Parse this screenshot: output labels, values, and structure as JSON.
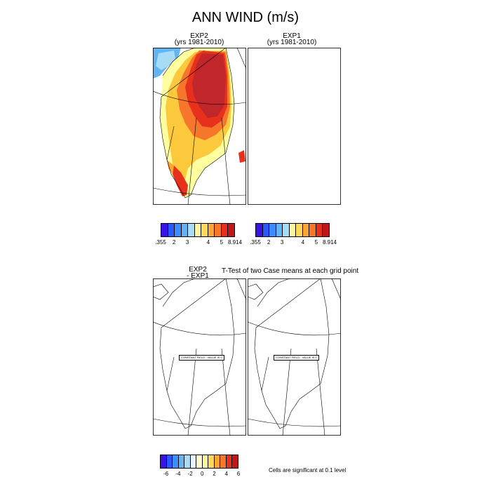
{
  "title": "ANN WIND (m/s)",
  "panels": {
    "exp2": {
      "title": "EXP2",
      "subtitle": "(yrs 1981-2010)"
    },
    "exp1": {
      "title": "EXP1",
      "subtitle": "(yrs 1981-2010)"
    },
    "diff": {
      "title_line1": "EXP2",
      "title_line2": "- EXP1"
    },
    "ttest": {
      "title": "T-Test of two Case means at each grid point"
    }
  },
  "colorbar_top": {
    "colors": [
      "#3a14e6",
      "#2a5aff",
      "#3f8cff",
      "#62b5f0",
      "#a6dcf5",
      "#fdf7a3",
      "#fdd85a",
      "#fba534",
      "#f6762b",
      "#e8311c",
      "#c01818"
    ],
    "labels": [
      ".355",
      "2",
      "3",
      "4",
      "5",
      "8.914"
    ]
  },
  "colorbar_bottom": {
    "colors": [
      "#3a14e6",
      "#2a5aff",
      "#3f8cff",
      "#62b5f0",
      "#a6dcf5",
      "#e8f6fb",
      "#fffbd0",
      "#fdf7a3",
      "#fdd85a",
      "#fba534",
      "#f6762b",
      "#e8311c",
      "#c01818"
    ],
    "labels": [
      "-6",
      "-4",
      "-2",
      "0",
      "2",
      "4",
      "6"
    ]
  },
  "constant_field_label": "CONSTANT FIELD - VALUE IS 0",
  "significance_note": "Cells are significant at 0.1 level",
  "map_colors": {
    "land_edge": "#ffffa0",
    "mid": "#fcc83c",
    "high": "#f6762b",
    "max": "#e8311c",
    "core": "#c0262a",
    "ocean": "#62b5f0"
  }
}
